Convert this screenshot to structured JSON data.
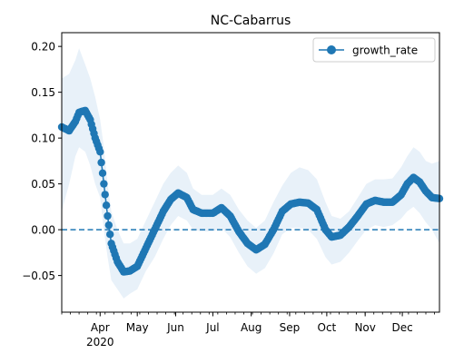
{
  "chart_data": {
    "type": "line",
    "title": "NC-Cabarrus",
    "xlabel": "",
    "ylabel": "",
    "xlim": [
      "2020-03-01",
      "2020-12-31"
    ],
    "ylim": [
      -0.09,
      0.215
    ],
    "grid": false,
    "legend_position": "top-right",
    "y_ticks": [
      {
        "value": 0.2,
        "label": "0.20"
      },
      {
        "value": 0.15,
        "label": "0.15"
      },
      {
        "value": 0.1,
        "label": "0.10"
      },
      {
        "value": 0.05,
        "label": "0.05"
      },
      {
        "value": 0.0,
        "label": "0.00"
      },
      {
        "value": -0.05,
        "label": "−0.05"
      }
    ],
    "x_ticks": [
      {
        "date": "2020-04-01",
        "label": "Apr"
      },
      {
        "date": "2020-05-01",
        "label": "May"
      },
      {
        "date": "2020-06-01",
        "label": "Jun"
      },
      {
        "date": "2020-07-01",
        "label": "Jul"
      },
      {
        "date": "2020-08-01",
        "label": "Aug"
      },
      {
        "date": "2020-09-01",
        "label": "Sep"
      },
      {
        "date": "2020-10-01",
        "label": "Oct"
      },
      {
        "date": "2020-11-01",
        "label": "Nov"
      },
      {
        "date": "2020-12-01",
        "label": "Dec"
      }
    ],
    "x_year_label": "2020",
    "reference_line": {
      "y": 0.0,
      "style": "dashed",
      "color": "#1f77b4"
    },
    "series": [
      {
        "name": "growth_rate",
        "color": "#1f77b4",
        "band_color": "#e8f1f9",
        "points": [
          {
            "date": "2020-03-01",
            "value": 0.112,
            "lower": 0.02,
            "upper": 0.165
          },
          {
            "date": "2020-03-07",
            "value": 0.108,
            "lower": 0.05,
            "upper": 0.17
          },
          {
            "date": "2020-03-12",
            "value": 0.118,
            "lower": 0.08,
            "upper": 0.185
          },
          {
            "date": "2020-03-15",
            "value": 0.128,
            "lower": 0.09,
            "upper": 0.198
          },
          {
            "date": "2020-03-20",
            "value": 0.13,
            "lower": 0.085,
            "upper": 0.18
          },
          {
            "date": "2020-03-24",
            "value": 0.12,
            "lower": 0.07,
            "upper": 0.165
          },
          {
            "date": "2020-03-28",
            "value": 0.1,
            "lower": 0.05,
            "upper": 0.145
          },
          {
            "date": "2020-04-01",
            "value": 0.085,
            "lower": 0.035,
            "upper": 0.12
          },
          {
            "date": "2020-04-04",
            "value": 0.05,
            "lower": 0.0,
            "upper": 0.09
          },
          {
            "date": "2020-04-07",
            "value": 0.015,
            "lower": -0.03,
            "upper": 0.05
          },
          {
            "date": "2020-04-10",
            "value": -0.015,
            "lower": -0.055,
            "upper": 0.02
          },
          {
            "date": "2020-04-15",
            "value": -0.035,
            "lower": -0.065,
            "upper": 0.0
          },
          {
            "date": "2020-04-20",
            "value": -0.046,
            "lower": -0.075,
            "upper": -0.015
          },
          {
            "date": "2020-04-25",
            "value": -0.045,
            "lower": -0.07,
            "upper": -0.015
          },
          {
            "date": "2020-05-01",
            "value": -0.04,
            "lower": -0.065,
            "upper": -0.01
          },
          {
            "date": "2020-05-08",
            "value": -0.02,
            "lower": -0.045,
            "upper": 0.01
          },
          {
            "date": "2020-05-15",
            "value": 0.0,
            "lower": -0.03,
            "upper": 0.03
          },
          {
            "date": "2020-05-22",
            "value": 0.02,
            "lower": -0.01,
            "upper": 0.05
          },
          {
            "date": "2020-05-28",
            "value": 0.033,
            "lower": 0.005,
            "upper": 0.062
          },
          {
            "date": "2020-06-03",
            "value": 0.04,
            "lower": 0.015,
            "upper": 0.07
          },
          {
            "date": "2020-06-10",
            "value": 0.035,
            "lower": 0.01,
            "upper": 0.062
          },
          {
            "date": "2020-06-15",
            "value": 0.022,
            "lower": 0.0,
            "upper": 0.045
          },
          {
            "date": "2020-06-22",
            "value": 0.018,
            "lower": -0.002,
            "upper": 0.038
          },
          {
            "date": "2020-07-01",
            "value": 0.018,
            "lower": -0.002,
            "upper": 0.038
          },
          {
            "date": "2020-07-08",
            "value": 0.024,
            "lower": 0.002,
            "upper": 0.045
          },
          {
            "date": "2020-07-15",
            "value": 0.015,
            "lower": -0.008,
            "upper": 0.038
          },
          {
            "date": "2020-07-22",
            "value": -0.002,
            "lower": -0.025,
            "upper": 0.022
          },
          {
            "date": "2020-07-29",
            "value": -0.015,
            "lower": -0.04,
            "upper": 0.01
          },
          {
            "date": "2020-08-05",
            "value": -0.022,
            "lower": -0.048,
            "upper": 0.002
          },
          {
            "date": "2020-08-12",
            "value": -0.016,
            "lower": -0.042,
            "upper": 0.01
          },
          {
            "date": "2020-08-19",
            "value": 0.0,
            "lower": -0.026,
            "upper": 0.03
          },
          {
            "date": "2020-08-26",
            "value": 0.02,
            "lower": -0.005,
            "upper": 0.048
          },
          {
            "date": "2020-09-02",
            "value": 0.028,
            "lower": 0.002,
            "upper": 0.062
          },
          {
            "date": "2020-09-09",
            "value": 0.03,
            "lower": 0.002,
            "upper": 0.068
          },
          {
            "date": "2020-09-16",
            "value": 0.029,
            "lower": 0.0,
            "upper": 0.065
          },
          {
            "date": "2020-09-23",
            "value": 0.022,
            "lower": -0.01,
            "upper": 0.055
          },
          {
            "date": "2020-09-30",
            "value": 0.0,
            "lower": -0.03,
            "upper": 0.03
          },
          {
            "date": "2020-10-05",
            "value": -0.008,
            "lower": -0.038,
            "upper": 0.015
          },
          {
            "date": "2020-10-12",
            "value": -0.006,
            "lower": -0.035,
            "upper": 0.012
          },
          {
            "date": "2020-10-19",
            "value": 0.003,
            "lower": -0.025,
            "upper": 0.02
          },
          {
            "date": "2020-10-26",
            "value": 0.015,
            "lower": -0.012,
            "upper": 0.035
          },
          {
            "date": "2020-11-02",
            "value": 0.028,
            "lower": 0.0,
            "upper": 0.05
          },
          {
            "date": "2020-11-09",
            "value": 0.032,
            "lower": 0.005,
            "upper": 0.055
          },
          {
            "date": "2020-11-16",
            "value": 0.03,
            "lower": 0.003,
            "upper": 0.055
          },
          {
            "date": "2020-11-23",
            "value": 0.03,
            "lower": 0.005,
            "upper": 0.056
          },
          {
            "date": "2020-11-30",
            "value": 0.038,
            "lower": 0.012,
            "upper": 0.068
          },
          {
            "date": "2020-12-05",
            "value": 0.05,
            "lower": 0.02,
            "upper": 0.08
          },
          {
            "date": "2020-12-10",
            "value": 0.057,
            "lower": 0.025,
            "upper": 0.09
          },
          {
            "date": "2020-12-15",
            "value": 0.052,
            "lower": 0.018,
            "upper": 0.085
          },
          {
            "date": "2020-12-20",
            "value": 0.042,
            "lower": 0.008,
            "upper": 0.075
          },
          {
            "date": "2020-12-25",
            "value": 0.035,
            "lower": 0.0,
            "upper": 0.072
          },
          {
            "date": "2020-12-31",
            "value": 0.034,
            "lower": -0.015,
            "upper": 0.075
          }
        ]
      }
    ]
  }
}
